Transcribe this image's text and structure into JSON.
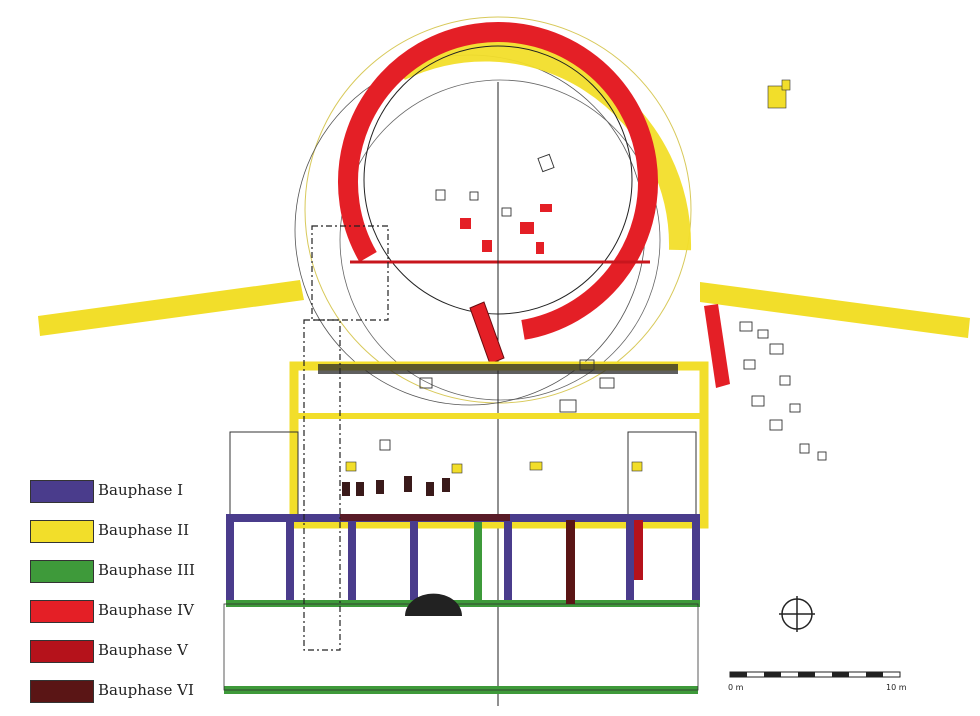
{
  "legend": {
    "items": [
      {
        "label": "Bauphase I",
        "color": "#4a3c8c"
      },
      {
        "label": "Bauphase II",
        "color": "#f2de2a"
      },
      {
        "label": "Bauphase III",
        "color": "#3e9a3a"
      },
      {
        "label": "Bauphase IV",
        "color": "#e41f26"
      },
      {
        "label": "Bauphase V",
        "color": "#b5121b"
      },
      {
        "label": "Bauphase VI",
        "color": "#5a1515"
      }
    ]
  },
  "scale": {
    "start_label": "0 m",
    "end_label": "10 m"
  },
  "north_arrow": {
    "icon": "north-arrow-icon"
  }
}
